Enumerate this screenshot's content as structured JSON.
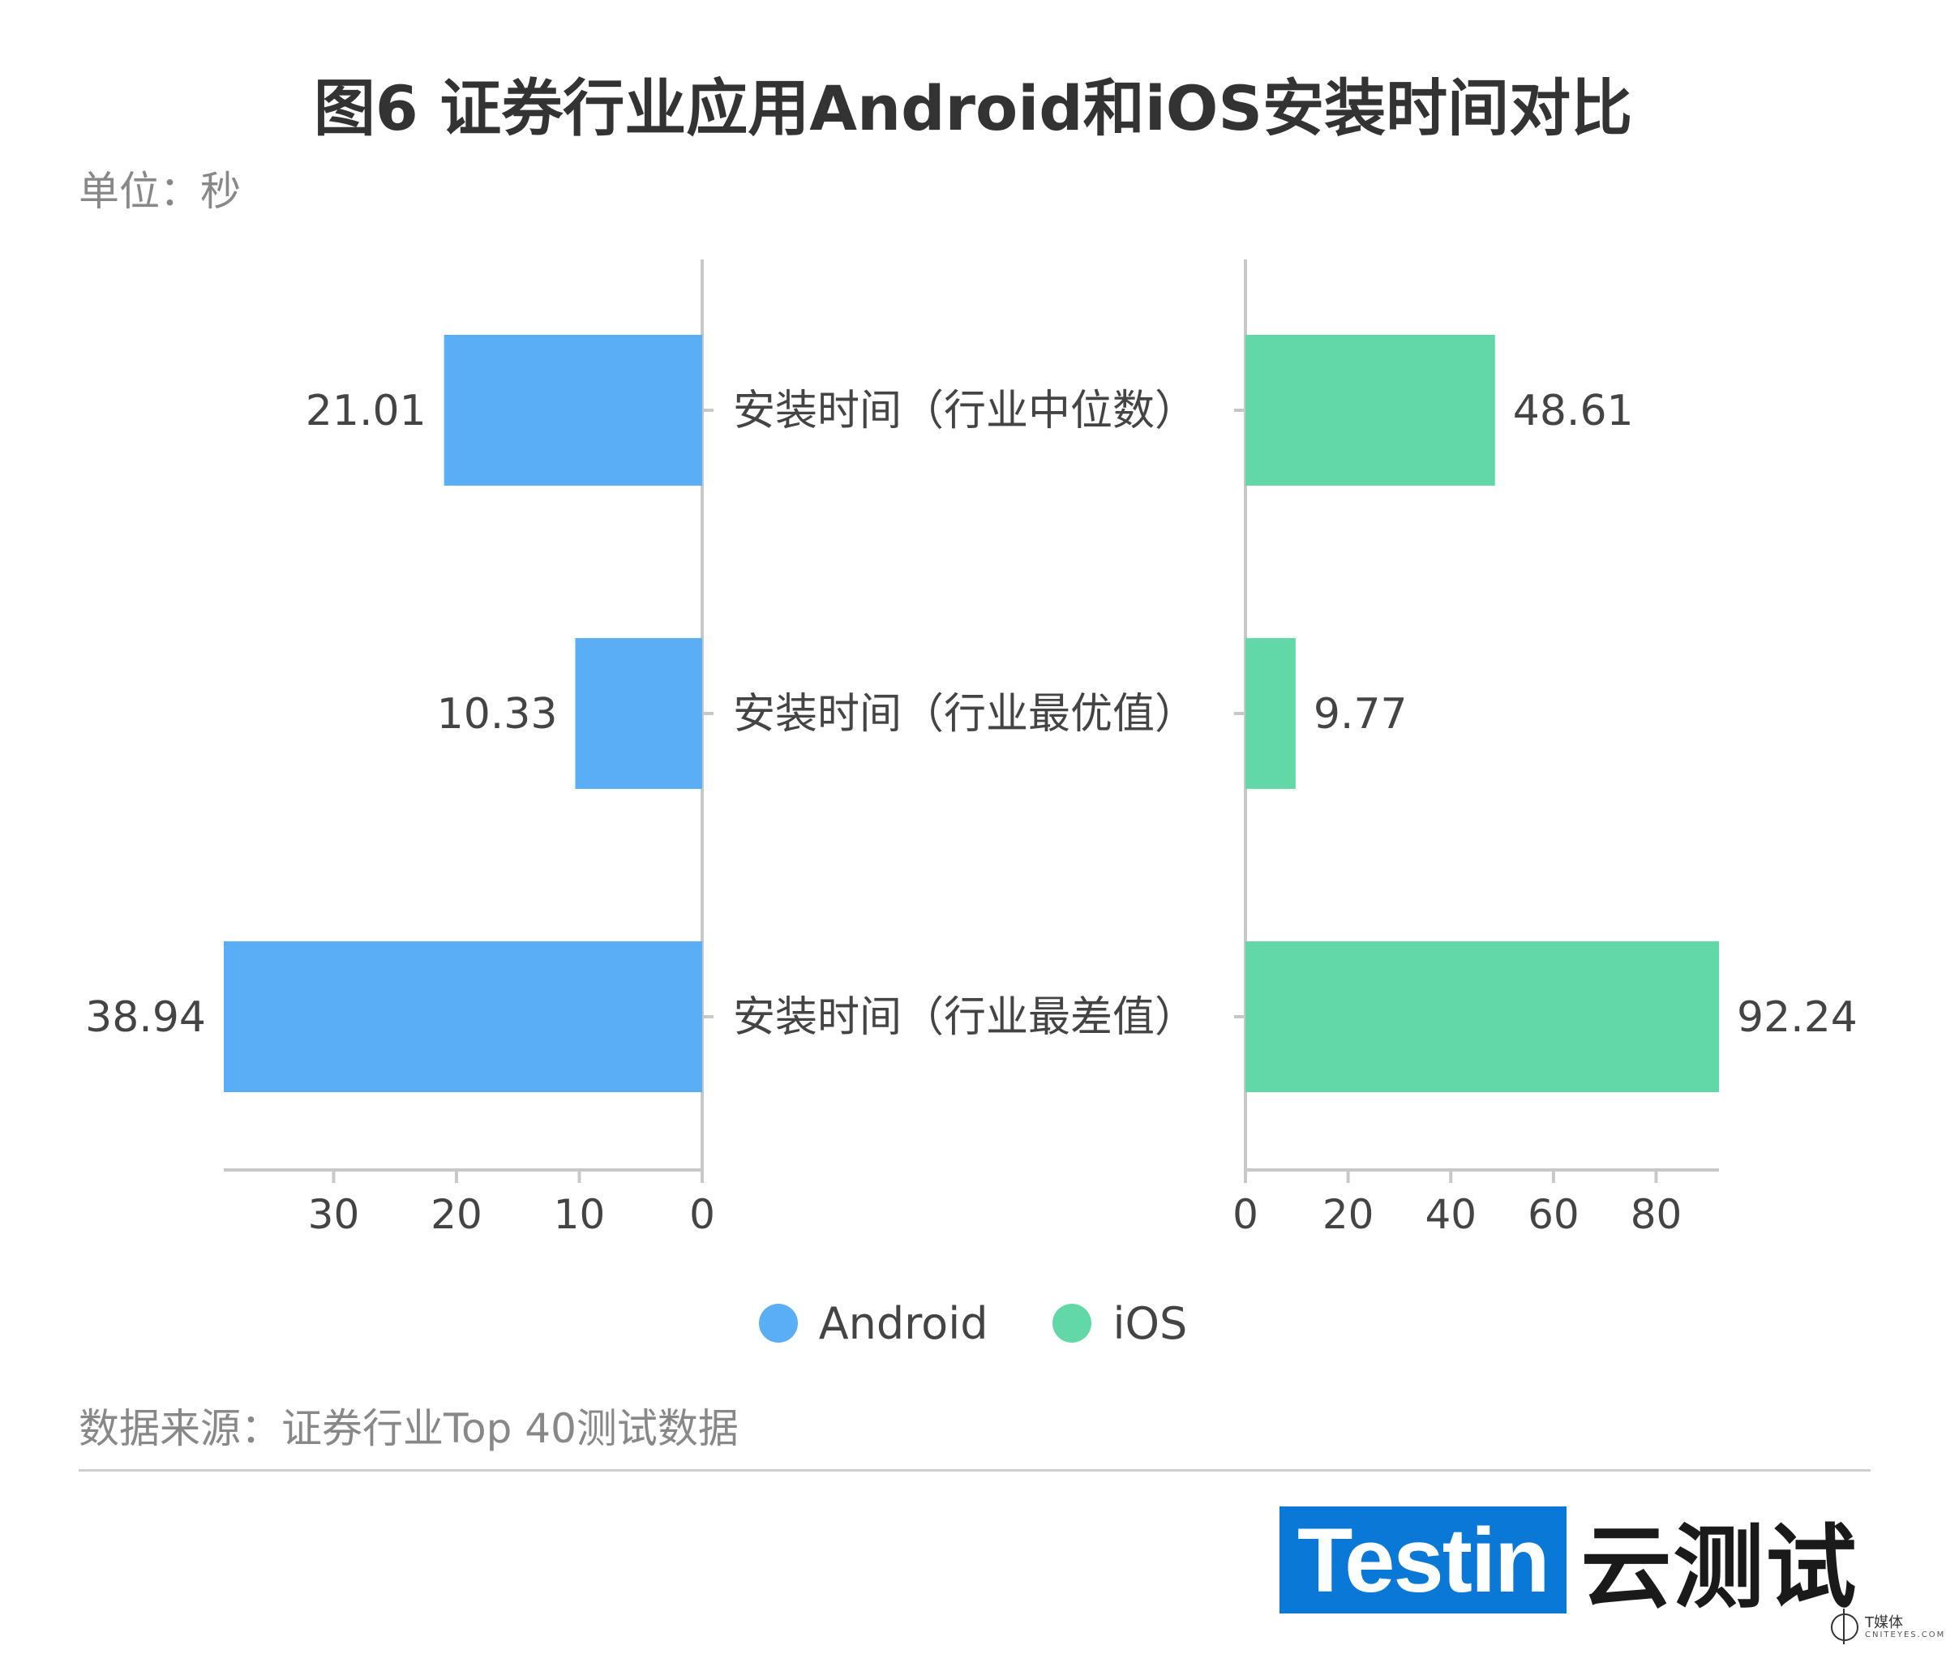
{
  "title": "图6 证券行业应用Android和iOS安装时间对比",
  "unit_label": "单位：秒",
  "source_note": "数据来源：证券行业Top 40测试数据",
  "brand": {
    "box_text": "Testin",
    "cn_text": "云测试"
  },
  "watermark": {
    "text": "T媒体",
    "sub": "CNITEYES.COM"
  },
  "colors": {
    "android": "#5aaef5",
    "ios": "#62d8a9",
    "axis": "#c8c8c8",
    "text": "#444444"
  },
  "chart_data": {
    "type": "bar",
    "orientation": "horizontal-butterfly",
    "categories": [
      "安装时间（行业中位数）",
      "安装时间（行业最优值）",
      "安装时间（行业最差值）"
    ],
    "series": [
      {
        "name": "Android",
        "values": [
          21.01,
          10.33,
          38.94
        ],
        "value_labels": [
          "21.01",
          "10.33",
          "38.94"
        ],
        "direction": "left"
      },
      {
        "name": "iOS",
        "values": [
          48.61,
          9.77,
          92.24
        ],
        "value_labels": [
          "48.61",
          "9.77",
          "92.24"
        ],
        "direction": "right"
      }
    ],
    "left_axis": {
      "xlim": [
        0,
        38.94
      ],
      "ticks": [
        30,
        20,
        10,
        0
      ],
      "tick_labels": [
        "30",
        "20",
        "10",
        "0"
      ]
    },
    "right_axis": {
      "xlim": [
        0,
        92.24
      ],
      "ticks": [
        0,
        20,
        40,
        60,
        80
      ],
      "tick_labels": [
        "0",
        "20",
        "40",
        "60",
        "80"
      ]
    },
    "legend": {
      "position": "bottom-center",
      "entries": [
        "Android",
        "iOS"
      ]
    },
    "grid": false
  }
}
